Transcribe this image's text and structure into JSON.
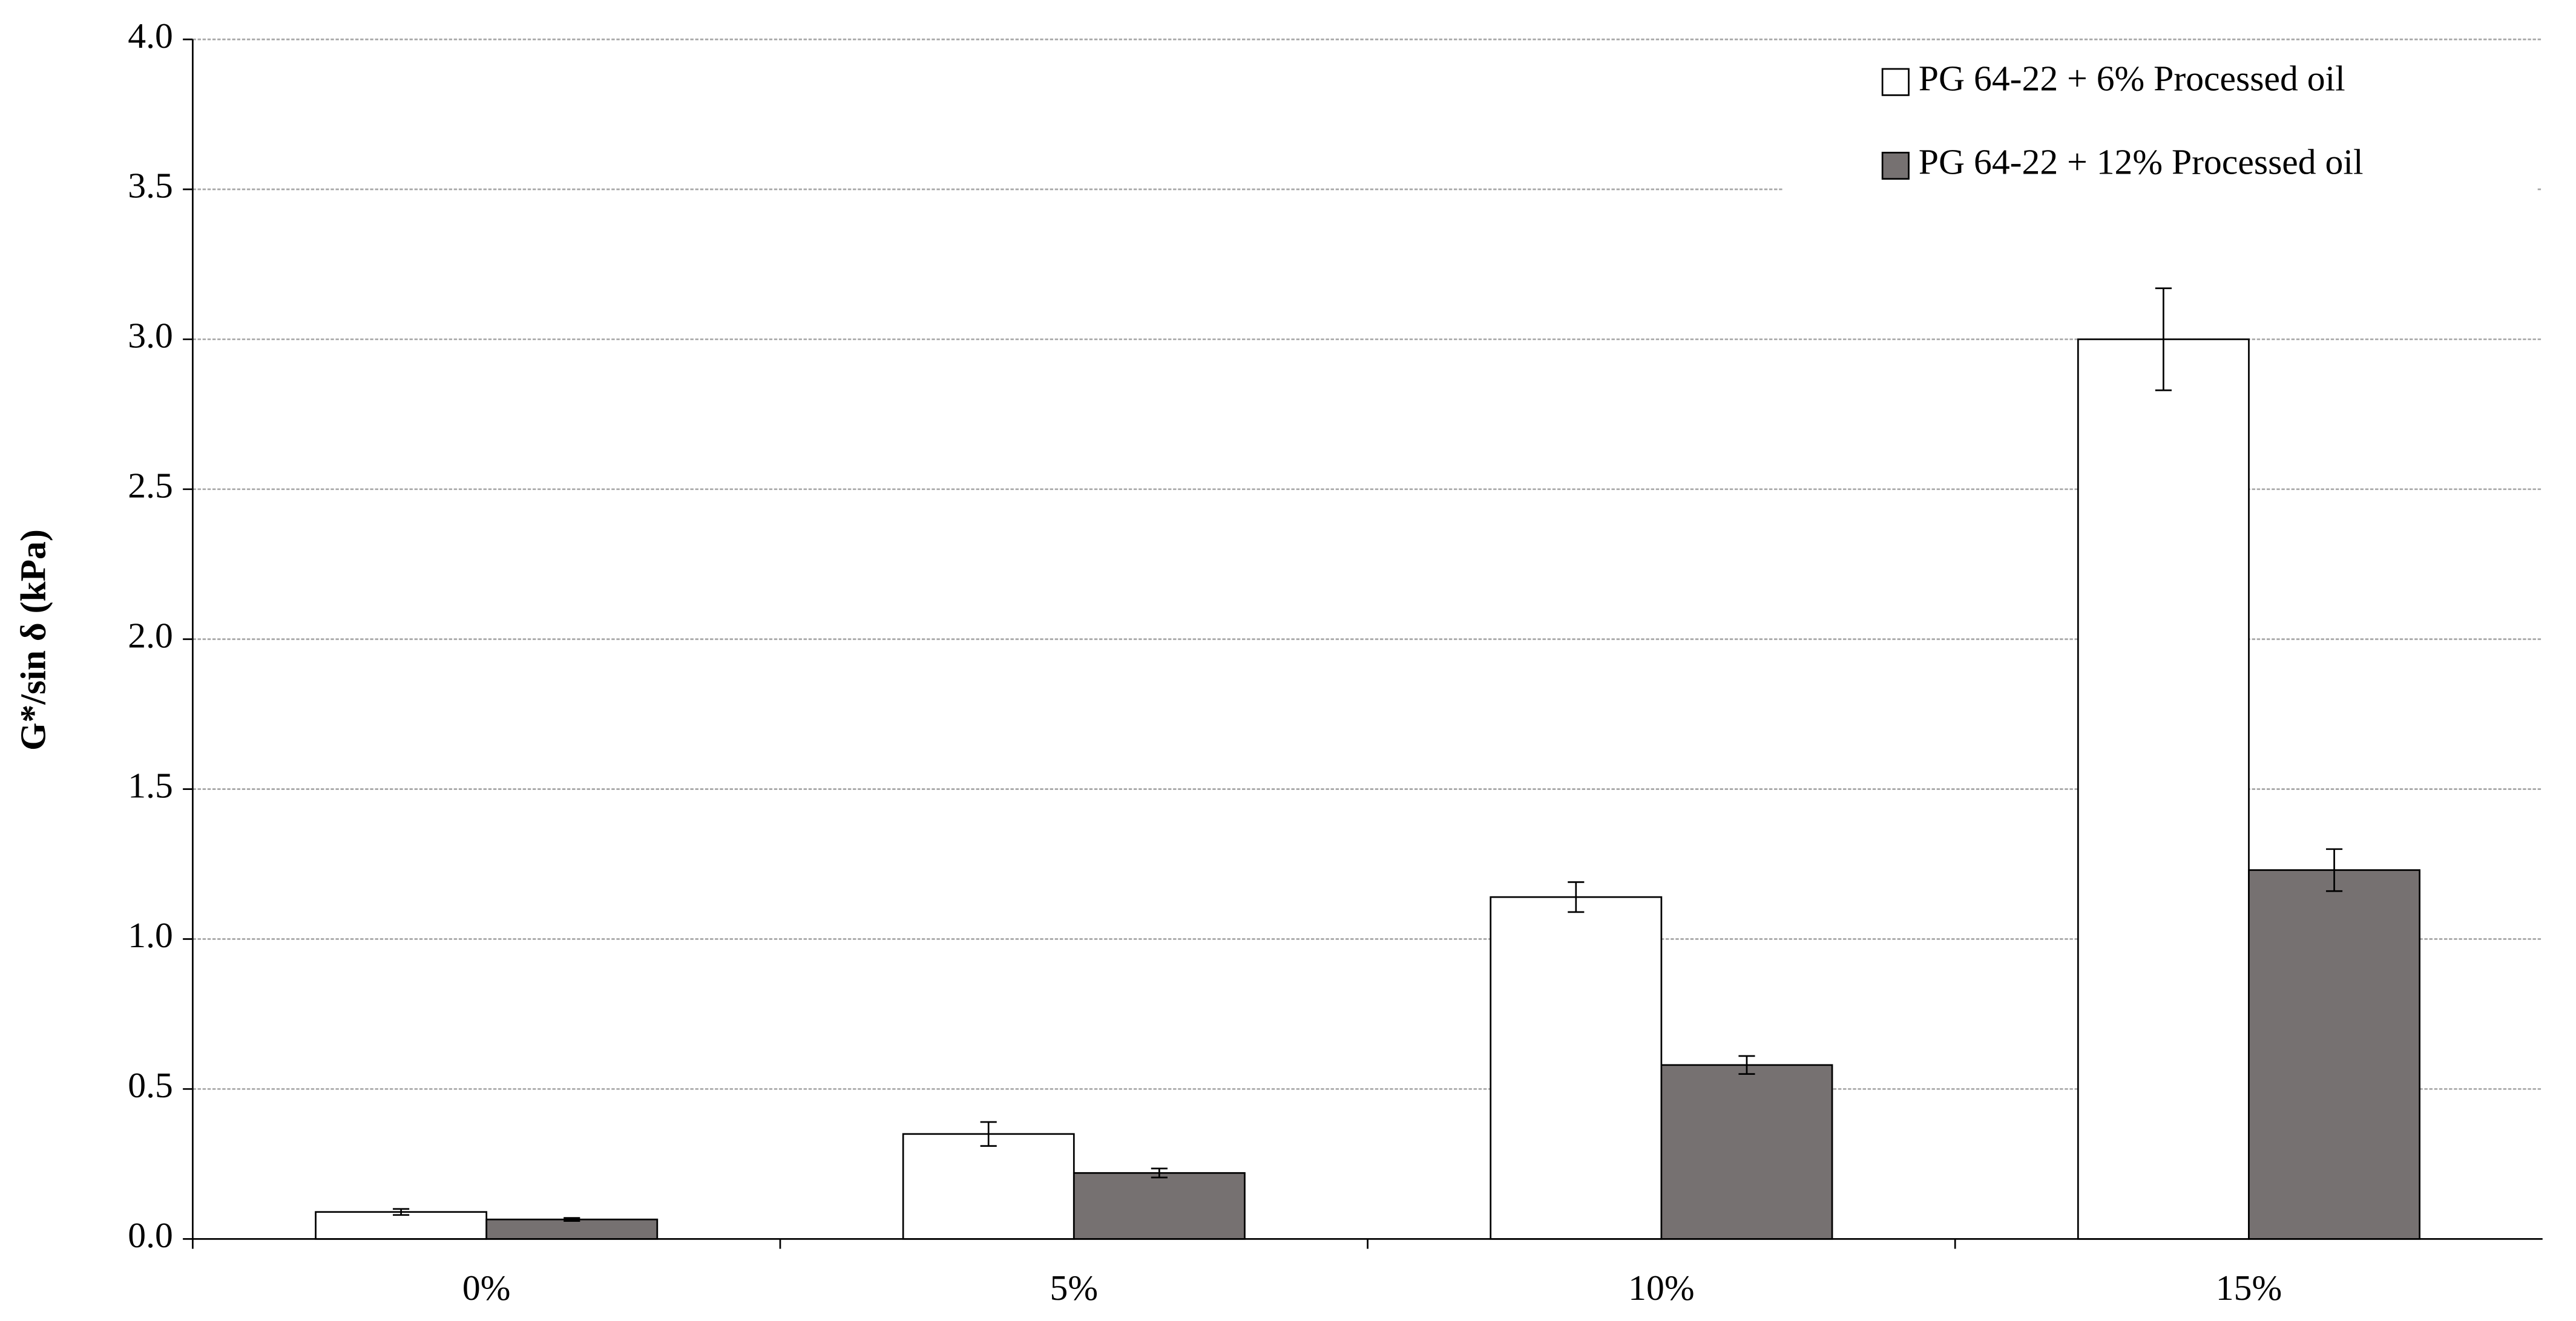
{
  "chart_data": {
    "type": "bar",
    "y_label": "G*/sin δ (kPa)",
    "categories": [
      "0%",
      "5%",
      "10%",
      "15%"
    ],
    "series": [
      {
        "name": "PG 64-22 + 6% Processed oil",
        "color": "#ffffff",
        "values": [
          0.09,
          0.35,
          1.14,
          3.0
        ],
        "errors": [
          0.01,
          0.04,
          0.05,
          0.17
        ]
      },
      {
        "name": "PG 64-22 + 12% Processed oil",
        "color": "#767171",
        "values": [
          0.065,
          0.22,
          0.58,
          1.23
        ],
        "errors": [
          0.005,
          0.015,
          0.03,
          0.07
        ]
      }
    ],
    "ylim": [
      0,
      4.0
    ],
    "yticks": [
      {
        "value": 0,
        "label": "0.0"
      },
      {
        "value": 0.5,
        "label": "0.5"
      },
      {
        "value": 1.0,
        "label": "1.0"
      },
      {
        "value": 1.5,
        "label": "1.5"
      },
      {
        "value": 2.0,
        "label": "2.0"
      },
      {
        "value": 2.5,
        "label": "2.5"
      },
      {
        "value": 3.0,
        "label": "3.0"
      },
      {
        "value": 3.5,
        "label": "3.5"
      },
      {
        "value": 4.0,
        "label": "4.0"
      }
    ],
    "grid": true,
    "legend": "top-right"
  }
}
